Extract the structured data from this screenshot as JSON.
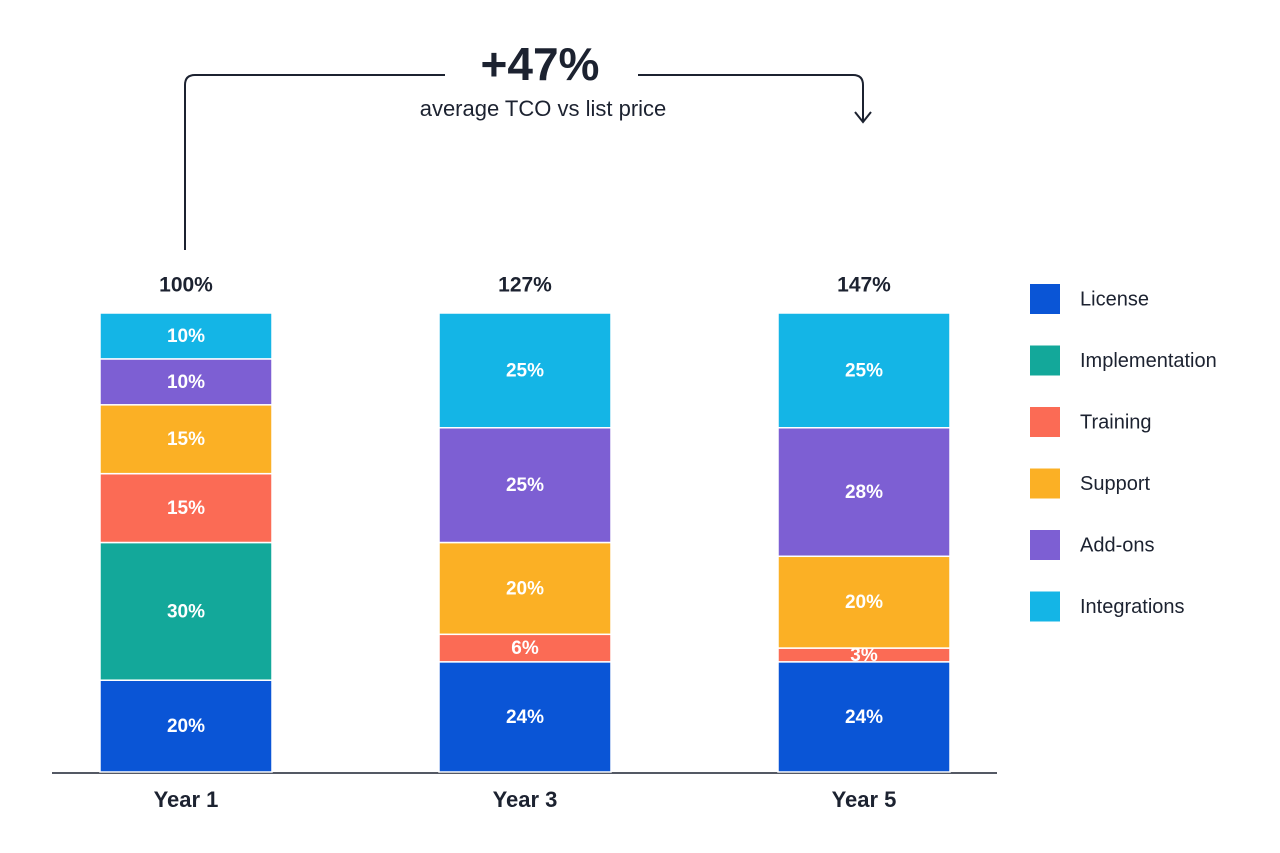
{
  "chart_data": {
    "type": "stacked-bar",
    "annotation": "+47%",
    "annotation_text": "average TCO vs list price",
    "categories": [
      "Year 1",
      "Year 3",
      "Year 5"
    ],
    "series": [
      {
        "name": "License",
        "color": "#0a55d6",
        "values": [
          20,
          24,
          24
        ],
        "value_labels": [
          "20%",
          "24%",
          "24%"
        ]
      },
      {
        "name": "Implementation",
        "color": "#13a89a",
        "values": [
          30,
          null,
          null
        ],
        "value_labels": [
          "30%",
          null,
          null
        ]
      },
      {
        "name": "Training",
        "color": "#fb6b55",
        "values": [
          15,
          6,
          3
        ],
        "value_labels": [
          "15%",
          "6%",
          "3%"
        ]
      },
      {
        "name": "Support",
        "color": "#fbb025",
        "values": [
          15,
          20,
          20
        ],
        "value_labels": [
          "15%",
          "20%",
          "20%"
        ]
      },
      {
        "name": "Add-ons",
        "color": "#7d5fd3",
        "values": [
          10,
          25,
          28
        ],
        "value_labels": [
          "10%",
          "25%",
          "28%"
        ]
      },
      {
        "name": "Integrations",
        "color": "#14b5e6",
        "values": [
          10,
          25,
          25
        ],
        "value_labels": [
          "10%",
          "25%",
          "25%"
        ]
      }
    ],
    "totals": {
      "values": [
        100,
        127,
        147
      ],
      "value_labels": [
        "100%",
        "127%",
        "147%"
      ]
    },
    "legend": "right"
  }
}
